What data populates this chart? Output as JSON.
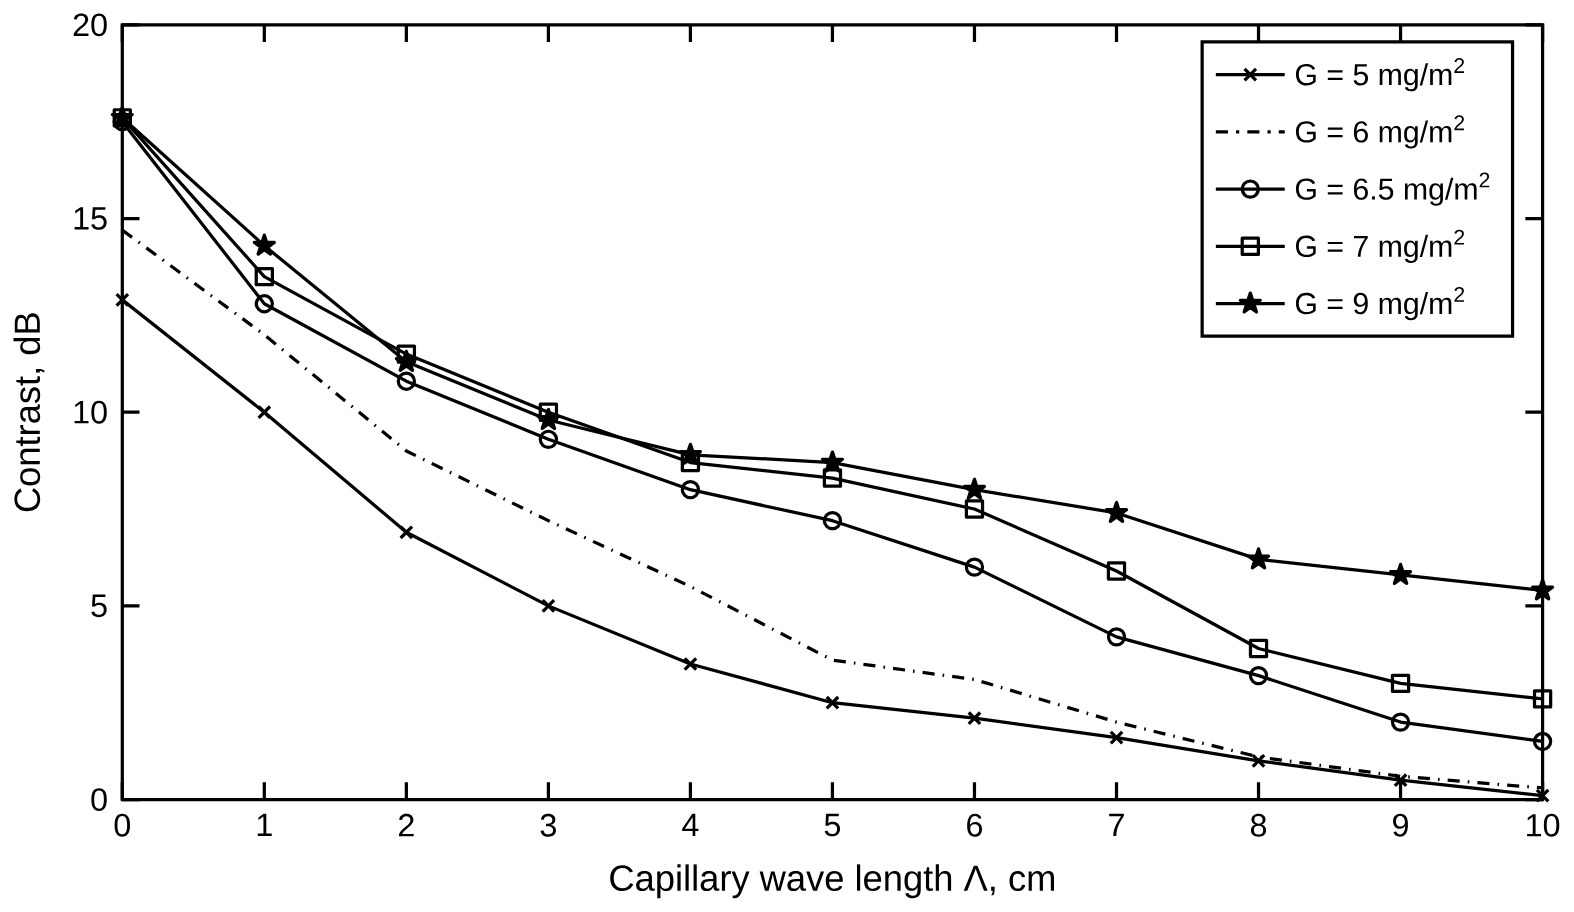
{
  "chart_data": {
    "type": "line",
    "xlabel": "Capillary wave length Λ, cm",
    "ylabel": "Contrast, dB",
    "x": [
      0,
      1,
      2,
      3,
      4,
      5,
      6,
      7,
      8,
      9,
      10
    ],
    "xlim": [
      0,
      10
    ],
    "ylim": [
      0,
      20
    ],
    "xticks": [
      0,
      1,
      2,
      3,
      4,
      5,
      6,
      7,
      8,
      9,
      10
    ],
    "yticks": [
      0,
      5,
      10,
      15,
      20
    ],
    "legend": "top right",
    "grid": false,
    "series": [
      {
        "name": "G = 5 mg/m$^{2}$",
        "color": "#000000",
        "marker": "cross",
        "line_style": "solid",
        "values": [
          12.9,
          10,
          6.9,
          5,
          3.5,
          2.5,
          2.1,
          1.6,
          1.0,
          0.5,
          0.1
        ]
      },
      {
        "name": "G = 6 mg/m$^{2}$",
        "color": "#000000",
        "marker": "none",
        "line_style": "dashdot",
        "values": [
          14.7,
          12,
          9,
          7.2,
          5.5,
          3.6,
          3.1,
          2.0,
          1.1,
          0.6,
          0.3
        ]
      },
      {
        "name": "G = 6.5 mg/m$^{2}$",
        "color": "#000000",
        "marker": "circle",
        "line_style": "solid",
        "values": [
          17.5,
          12.8,
          10.8,
          9.3,
          8.0,
          7.2,
          6.0,
          4.2,
          3.2,
          2.0,
          1.5
        ]
      },
      {
        "name": "G = 7 mg/m$^{2}$",
        "color": "#000000",
        "marker": "square",
        "line_style": "solid",
        "values": [
          17.6,
          13.5,
          11.5,
          10.0,
          8.7,
          8.3,
          7.5,
          5.9,
          3.9,
          3.0,
          2.6
        ]
      },
      {
        "name": "G = 9 mg/m$^{2}$",
        "color": "#000000",
        "marker": "star",
        "line_style": "solid",
        "values": [
          17.6,
          14.3,
          11.3,
          9.8,
          8.9,
          8.7,
          8.0,
          7.4,
          6.2,
          5.8,
          5.4
        ]
      }
    ]
  }
}
